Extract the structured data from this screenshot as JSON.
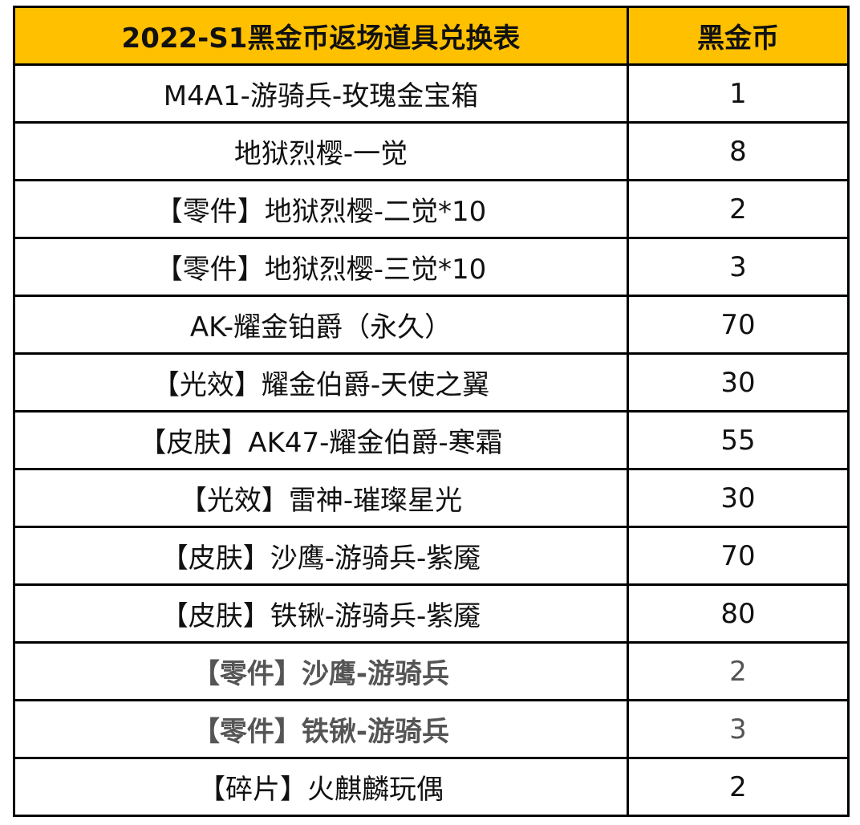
{
  "table": {
    "header": {
      "item": "2022-S1黑金币返场道具兑换表",
      "price": "黑金币"
    },
    "header_color": "#ffc000",
    "rows": [
      {
        "item": "M4A1-游骑兵-玫瑰金宝箱",
        "price": "1"
      },
      {
        "item": "地狱烈樱-一觉",
        "price": "8"
      },
      {
        "item": "【零件】地狱烈樱-二觉*10",
        "price": "2"
      },
      {
        "item": "【零件】地狱烈樱-三觉*10",
        "price": "3"
      },
      {
        "item": "AK-耀金铂爵（永久）",
        "price": "70"
      },
      {
        "item": "【光效】耀金伯爵-天使之翼",
        "price": "30"
      },
      {
        "item": "【皮肤】AK47-耀金伯爵-寒霜",
        "price": "55"
      },
      {
        "item": "【光效】雷神-璀璨星光",
        "price": "30"
      },
      {
        "item": "【皮肤】沙鹰-游骑兵-紫魇",
        "price": "70"
      },
      {
        "item": "【皮肤】铁锹-游骑兵-紫魇",
        "price": "80"
      },
      {
        "item": "【零件】沙鹰-游骑兵",
        "price": "2"
      },
      {
        "item": "【零件】铁锹-游骑兵",
        "price": "3"
      },
      {
        "item": "【碎片】火麒麟玩偶",
        "price": "2"
      }
    ]
  }
}
